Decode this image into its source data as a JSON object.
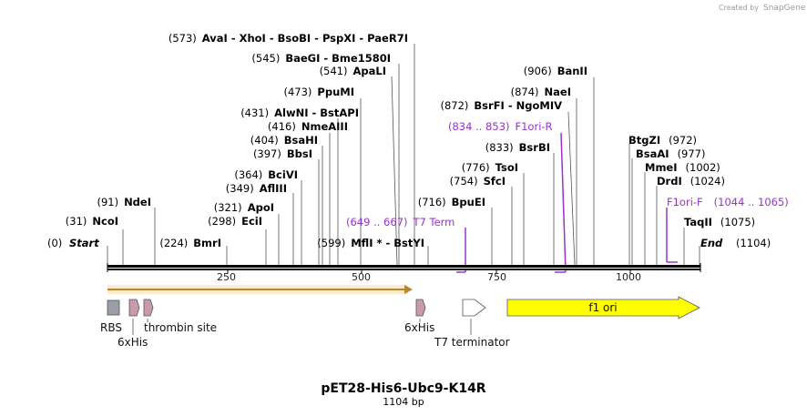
{
  "credit": {
    "prefix": "Created by",
    "brand": "SnapGene"
  },
  "title": "pET28-His6-Ubc9-K14R",
  "subtitle": "1104 bp",
  "ticks": [
    "250",
    "500",
    "750",
    "1000"
  ],
  "ends": {
    "start": {
      "pos": "(0)",
      "name": "Start"
    },
    "end": {
      "name": "End",
      "pos": "(1104)"
    }
  },
  "sites": [
    {
      "pos": "(31)",
      "name": "NcoI"
    },
    {
      "pos": "(91)",
      "name": "NdeI"
    },
    {
      "pos": "(224)",
      "name": "BmrI"
    },
    {
      "pos": "(298)",
      "name": "EciI"
    },
    {
      "pos": "(321)",
      "name": "ApoI"
    },
    {
      "pos": "(349)",
      "name": "AflIII"
    },
    {
      "pos": "(364)",
      "name": "BciVI"
    },
    {
      "pos": "(397)",
      "name": "BbsI"
    },
    {
      "pos": "(404)",
      "name": "BsaHI"
    },
    {
      "pos": "(416)",
      "name": "NmeAIII"
    },
    {
      "pos": "(431)",
      "name": "AlwNI  - BstAPI"
    },
    {
      "pos": "(473)",
      "name": "PpuMI"
    },
    {
      "pos": "(541)",
      "name": "ApaLI"
    },
    {
      "pos": "(545)",
      "name": "BaeGI  - Bme1580I"
    },
    {
      "pos": "(573)",
      "name": "AvaI  - XhoI  - BsoBI  - PspXI  - PaeR7I"
    },
    {
      "pos": "(599)",
      "name": "MflI *  - BstYI"
    },
    {
      "pos": "(716)",
      "name": "BpuEI"
    },
    {
      "pos": "(754)",
      "name": "SfcI"
    },
    {
      "pos": "(776)",
      "name": "TsoI"
    },
    {
      "pos": "(833)",
      "name": "BsrBI"
    },
    {
      "pos": "(872)",
      "name": "BsrFI  - NgoMIV"
    },
    {
      "pos": "(874)",
      "name": "NaeI"
    },
    {
      "pos": "(906)",
      "name": "BanII"
    },
    {
      "name": "BtgZI",
      "pos": "(972)"
    },
    {
      "name": "BsaAI",
      "pos": "(977)"
    },
    {
      "name": "MmeI",
      "pos": "(1002)"
    },
    {
      "name": "DrdI",
      "pos": "(1024)"
    },
    {
      "name": "TaqII",
      "pos": "(1075)"
    }
  ],
  "primers": {
    "t7": {
      "range": "(649 .. 667)",
      "name": "T7 Term"
    },
    "r": {
      "range": "(834 .. 853)",
      "name": "F1ori-R"
    },
    "f": {
      "name": "F1ori-F",
      "range": "(1044 .. 1065)"
    }
  },
  "features": {
    "rbs": "RBS",
    "his1": "6xHis",
    "thrombin": "thrombin site",
    "his2": "6xHis",
    "t7term": "T7 terminator",
    "f1ori": "f1 ori"
  },
  "colors": {
    "primer": "#9932cc",
    "orf": "#e8a84a",
    "rbs": "#9a9ea8",
    "tag": "#c89aaa",
    "f1ori": "#ffff00"
  }
}
